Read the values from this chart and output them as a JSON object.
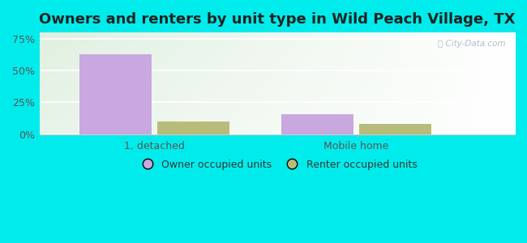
{
  "title": "Owners and renters by unit type in Wild Peach Village, TX",
  "categories": [
    "1, detached",
    "Mobile home"
  ],
  "owner_values": [
    63.0,
    16.0
  ],
  "renter_values": [
    10.0,
    8.0
  ],
  "owner_color": "#c9a8e0",
  "renter_color": "#b8bc7a",
  "bar_width": 0.25,
  "ylim": [
    0,
    80
  ],
  "yticks": [
    0,
    25,
    50,
    75
  ],
  "ytick_labels": [
    "0%",
    "25%",
    "50%",
    "75%"
  ],
  "legend_labels": [
    "Owner occupied units",
    "Renter occupied units"
  ],
  "bg_color": "#00ecec",
  "plot_bg": "#e8f5e9",
  "watermark": "City-Data.com",
  "title_fontsize": 13,
  "tick_color": "#555555"
}
